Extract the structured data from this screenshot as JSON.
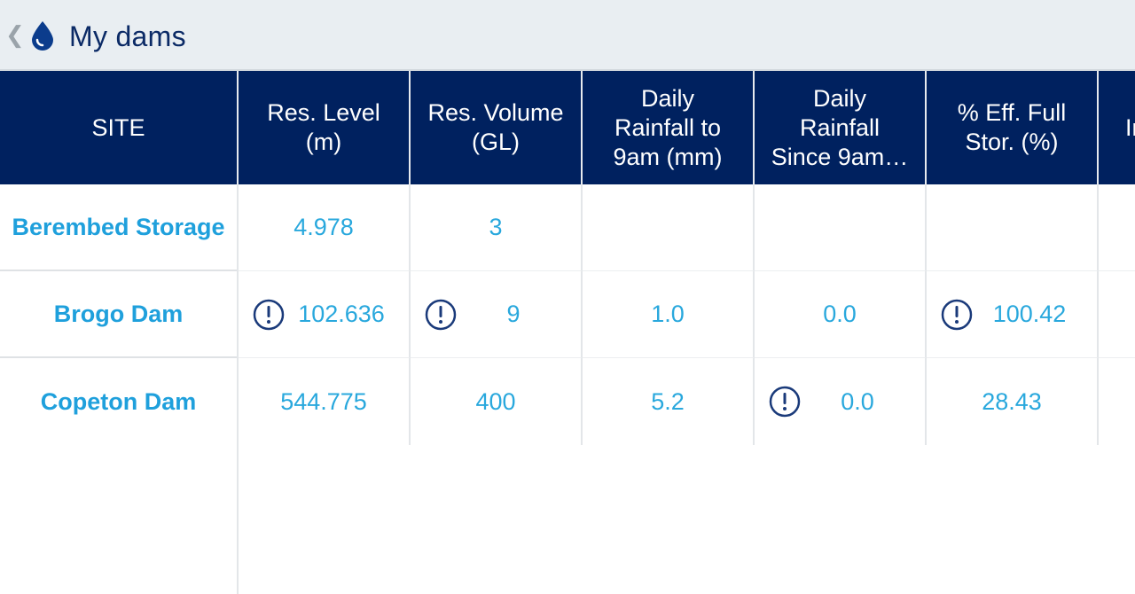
{
  "header": {
    "title": "My dams",
    "back_icon": "chevron-left-icon",
    "app_icon": "water-drop-icon"
  },
  "colors": {
    "header_bg": "#00215f",
    "accent": "#29a8dd",
    "title": "#0b2a66",
    "warning": "#1a3a7a"
  },
  "table": {
    "columns": [
      "SITE",
      "Res. Level\n(m)",
      "Res. Volume\n(GL)",
      "Daily\nRainfall to\n9am (mm)",
      "Daily\nRainfall\nSince 9am…",
      "% Eff. Full\nStor. (%)",
      "In"
    ],
    "rows": [
      {
        "site": "Berembed Storage",
        "res_level": "4.978",
        "res_volume": "3",
        "rain_to_9am": "",
        "rain_since_9am": "",
        "eff_full": ""
      },
      {
        "site": "Brogo Dam",
        "res_level": "102.636",
        "res_volume": "9",
        "rain_to_9am": "1.0",
        "rain_since_9am": "0.0",
        "eff_full": "100.42"
      },
      {
        "site": "Copeton Dam",
        "res_level": "544.775",
        "res_volume": "400",
        "rain_to_9am": "5.2",
        "rain_since_9am": "0.0",
        "eff_full": "28.43"
      }
    ]
  }
}
